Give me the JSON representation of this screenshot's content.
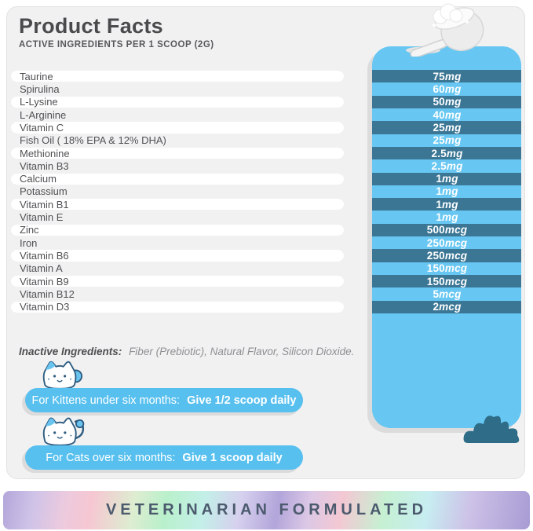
{
  "header": {
    "title": "Product Facts",
    "subtitle": "ACTIVE INGREDIENTS PER 1 SCOOP (2G)"
  },
  "ingredients": [
    {
      "name": "Taurine",
      "amount": "75mg"
    },
    {
      "name": "Spirulina",
      "amount": "60mg"
    },
    {
      "name": "L-Lysine",
      "amount": "50mg"
    },
    {
      "name": "L-Arginine",
      "amount": "40mg"
    },
    {
      "name": "Vitamin C",
      "amount": "25mg"
    },
    {
      "name": "Fish Oil ( 18% EPA & 12% DHA)",
      "amount": "25mg"
    },
    {
      "name": "Methionine",
      "amount": "2.5mg"
    },
    {
      "name": "Vitamin B3",
      "amount": "2.5mg"
    },
    {
      "name": "Calcium",
      "amount": "1mg"
    },
    {
      "name": "Potassium",
      "amount": "1mg"
    },
    {
      "name": "Vitamin B1",
      "amount": "1mg"
    },
    {
      "name": "Vitamin E",
      "amount": "1mg"
    },
    {
      "name": "Zinc",
      "amount": "500mcg"
    },
    {
      "name": "Iron",
      "amount": "250mcg"
    },
    {
      "name": "Vitamin B6",
      "amount": "250mcg"
    },
    {
      "name": "Vitamin A",
      "amount": "150mcg"
    },
    {
      "name": "Vitamin B9",
      "amount": "150mcg"
    },
    {
      "name": "Vitamin B12",
      "amount": "5mcg"
    },
    {
      "name": "Vitamin D3",
      "amount": "2mcg"
    }
  ],
  "inactive_ingredients": {
    "label": "Inactive Ingredients:",
    "value": "Fiber (Prebiotic), Natural Flavor, Silicon Dioxide."
  },
  "feeding_guidelines": [
    {
      "label": "For Kittens under six months:",
      "dose": "Give 1/2 scoop daily"
    },
    {
      "label": "For Cats over six months:",
      "dose": "Give 1 scoop daily"
    }
  ],
  "banner": {
    "text": "VETERINARIAN FORMULATED"
  },
  "icons": {
    "scoop": "scoop-icon",
    "kitten": "kitten-icon",
    "cat": "cat-icon",
    "bush": "bush-icon"
  },
  "colors": {
    "panel_blue": "#67c7f2",
    "amount_pill": "#3b7694",
    "guideline_pill": "#58c0ef",
    "bush": "#2e6c88",
    "banner_text": "#4c5a6e",
    "title_text": "#4a4a4d"
  }
}
